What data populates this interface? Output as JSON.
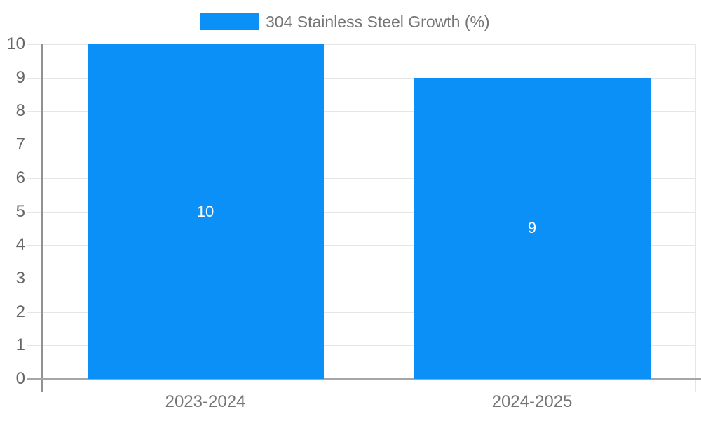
{
  "chart_data": {
    "type": "bar",
    "legend": {
      "label": "304 Stainless Steel Growth (%)",
      "position": "top-center"
    },
    "categories": [
      "2023-2024",
      "2024-2025"
    ],
    "series": [
      {
        "name": "304 Stainless Steel Growth (%)",
        "values": [
          10,
          9
        ]
      }
    ],
    "data_labels": [
      "10",
      "9"
    ],
    "xlabel": "",
    "ylabel": "",
    "ylim": [
      0,
      10
    ],
    "yticks": [
      0,
      1,
      2,
      3,
      4,
      5,
      6,
      7,
      8,
      9,
      10
    ],
    "grid": true
  },
  "colors": {
    "bar": "#0b90f7",
    "grid": "#e6e6e6",
    "baseline": "#a6a6a6",
    "axis_line": "#919191",
    "y_tick_label": "#666666",
    "x_category_label": "#757575",
    "legend_text": "#757575",
    "data_label": "#ffffff",
    "background": "#ffffff"
  }
}
